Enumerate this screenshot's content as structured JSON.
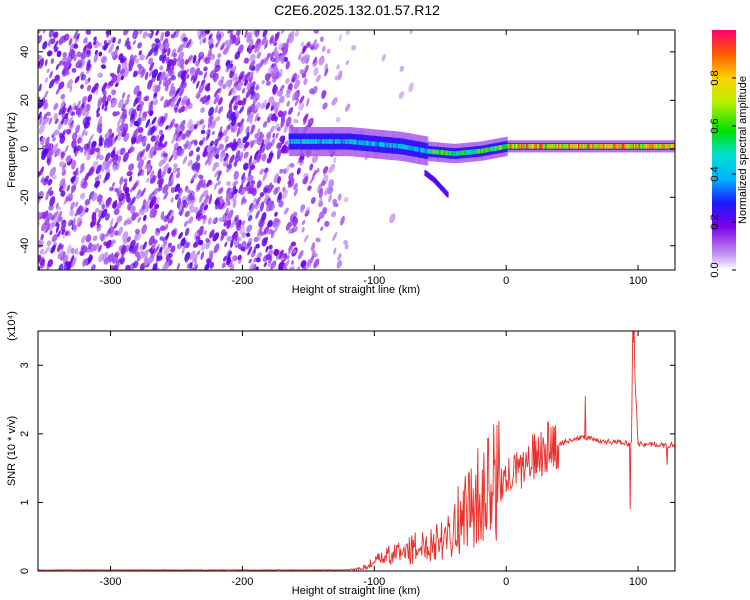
{
  "title": "C2E6.2025.132.01.57.R12",
  "colors": {
    "snr_line": "#e8302a",
    "axis": "#000000",
    "background": "#ffffff"
  },
  "chart_data": [
    {
      "type": "heatmap",
      "title": "C2E6.2025.132.01.57.R12",
      "xlabel": "Height of straight line (km)",
      "ylabel": "Frequency (Hz)",
      "xlim": [
        -355,
        128
      ],
      "ylim": [
        -50,
        49
      ],
      "xticks": [
        -300,
        -200,
        -100,
        0,
        100
      ],
      "xtick_labels": [
        "-300",
        "-200",
        "-100",
        "0",
        "100"
      ],
      "yticks": [
        -40,
        -20,
        0,
        20,
        40
      ],
      "ytick_labels": [
        "-40",
        "-20",
        "0",
        "20",
        "40"
      ],
      "colorbar": {
        "label": "Normalized spectral amplitude",
        "range": [
          0,
          1
        ],
        "ticks": [
          0.0,
          0.2,
          0.4,
          0.6,
          0.8
        ],
        "tick_labels": [
          "0.0",
          "0.2",
          "0.4",
          "0.6",
          "0.8"
        ]
      },
      "features": {
        "noise_region_x": [
          -355,
          -120
        ],
        "signal_trace": {
          "x": [
            -165,
            -140,
            -120,
            -100,
            -80,
            -60,
            -40,
            -20,
            0,
            20,
            40,
            60,
            80,
            100,
            128
          ],
          "freq": [
            3,
            3,
            3,
            2,
            1,
            -1,
            -2,
            -1,
            1,
            1,
            1,
            1,
            1,
            1,
            1
          ]
        },
        "secondary_trace": {
          "x": [
            -62,
            -55,
            -50,
            -45
          ],
          "freq": [
            -10,
            -13,
            -16,
            -19
          ]
        }
      }
    },
    {
      "type": "line",
      "xlabel": "Height of straight line (km)",
      "ylabel": "SNR (10 * v/v)",
      "y_exponent_label": "(x10⁴)",
      "xlim": [
        -355,
        128
      ],
      "ylim": [
        0,
        3.5
      ],
      "xticks": [
        -300,
        -200,
        -100,
        0,
        100
      ],
      "xtick_labels": [
        "-300",
        "-200",
        "-100",
        "0",
        "100"
      ],
      "yticks": [
        0,
        1,
        2,
        3
      ],
      "ytick_labels": [
        "0",
        "1",
        "2",
        "3"
      ],
      "series": [
        {
          "name": "SNR",
          "x": [
            -355,
            -300,
            -250,
            -200,
            -150,
            -125,
            -110,
            -100,
            -90,
            -80,
            -70,
            -60,
            -50,
            -40,
            -30,
            -20,
            -10,
            0,
            10,
            20,
            30,
            40,
            50,
            60,
            70,
            80,
            90,
            95,
            96,
            100,
            110,
            120,
            128
          ],
          "values": [
            0.01,
            0.01,
            0.01,
            0.01,
            0.01,
            0.01,
            0.03,
            0.12,
            0.2,
            0.25,
            0.3,
            0.35,
            0.45,
            0.6,
            0.8,
            1.0,
            1.15,
            1.3,
            1.45,
            1.6,
            1.75,
            1.85,
            1.92,
            1.95,
            1.9,
            1.88,
            1.87,
            1.85,
            3.55,
            1.85,
            1.85,
            1.83,
            1.85
          ],
          "spikes": [
            {
              "x": 60,
              "value": 2.55
            },
            {
              "x": 94,
              "value": 0.9
            },
            {
              "x": 97,
              "value": 3.55
            },
            {
              "x": 122,
              "value": 1.55
            }
          ]
        }
      ]
    }
  ]
}
